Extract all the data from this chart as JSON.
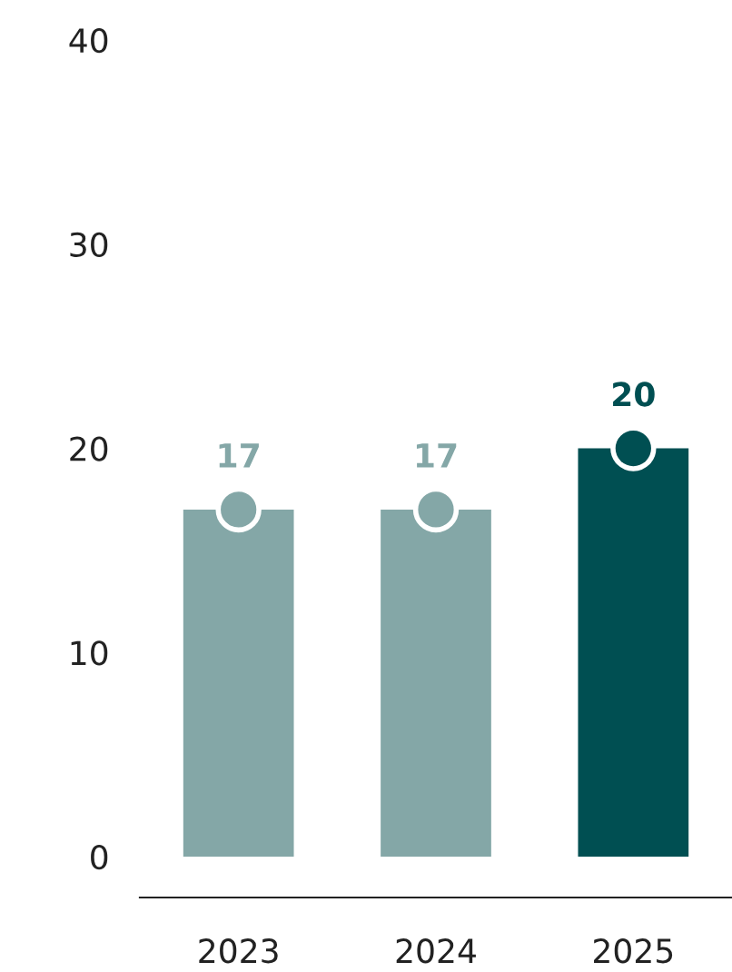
{
  "chart_data": {
    "type": "bar",
    "categories": [
      "2023",
      "2024",
      "2025"
    ],
    "series": [
      {
        "values": [
          17,
          17,
          20
        ],
        "colors": [
          "#84a7a7",
          "#84a7a7",
          "#004f52"
        ]
      },
      {
        "type": "scatter",
        "values": [
          17,
          17,
          20
        ],
        "colors": [
          "#84a7a7",
          "#84a7a7",
          "#004f52"
        ],
        "marker": "circle",
        "value_labels": [
          "17",
          "17",
          "20"
        ]
      }
    ],
    "ylim": [
      -2,
      40
    ],
    "yticks": [
      0,
      10,
      20,
      30,
      40
    ],
    "grid": false,
    "legend": false
  }
}
